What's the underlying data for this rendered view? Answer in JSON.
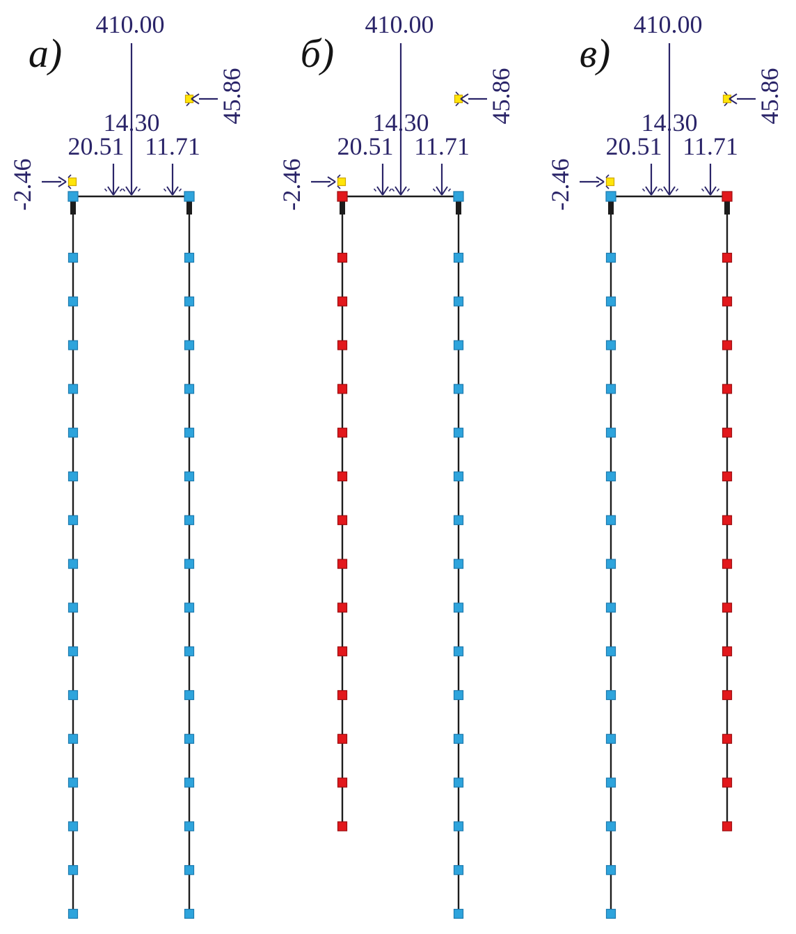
{
  "figure": {
    "description": "Three pile-frame load schemes labeled a), b), v) with identical applied loads and differing pile node colors/lengths"
  },
  "loads": {
    "vertical_main": "410.00",
    "vertical_center": "14.30",
    "vertical_left": "20.51",
    "vertical_right": "11.71",
    "horizontal_upper": "45.86",
    "horizontal_left": "-2.46"
  },
  "colors": {
    "load_text_navy": "#2a2468",
    "structure_black": "#1c1c1c",
    "node_blue_fill": "#2ea4dc",
    "node_blue_border": "#1d7aae",
    "node_red_fill": "#e2181c",
    "node_red_border": "#9c0e10",
    "marker_yellow_fill": "#ffe50a",
    "marker_yellow_border": "#cfa600"
  },
  "diagrams": [
    {
      "label": "а)",
      "left_pile_color": "blue",
      "right_pile_color": "blue",
      "left_node_count": 16,
      "right_node_count": 16
    },
    {
      "label": "б)",
      "left_pile_color": "red",
      "right_pile_color": "blue",
      "left_node_count": 14,
      "right_node_count": 16
    },
    {
      "label": "в)",
      "left_pile_color": "blue",
      "right_pile_color": "red",
      "left_node_count": 16,
      "right_node_count": 14
    }
  ]
}
